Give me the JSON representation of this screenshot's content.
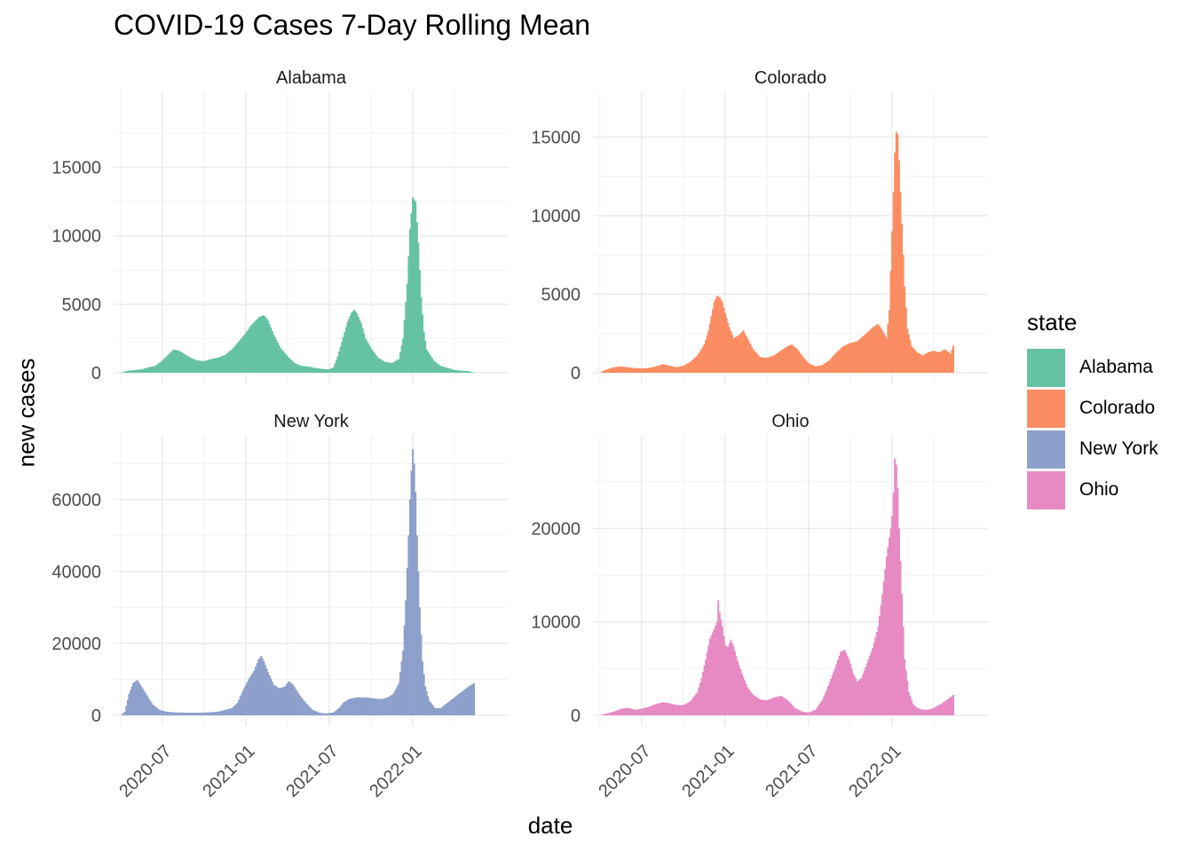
{
  "chart_data": {
    "type": "bar",
    "title": "COVID-19 Cases 7-Day Rolling Mean",
    "xlabel": "date",
    "ylabel": "new cases",
    "legend_title": "state",
    "legend_position": "right",
    "x_tick_labels": [
      "2020-07",
      "2021-01",
      "2021-07",
      "2022-01"
    ],
    "x_tick_months": [
      6,
      12,
      18,
      24
    ],
    "x_range_months": [
      2.5,
      30.9
    ],
    "panels": [
      {
        "name": "Alabama",
        "color": "#66C2A5",
        "ylim": [
          0,
          19500
        ],
        "yticks": [
          0,
          5000,
          10000,
          15000
        ],
        "series": [
          [
            3.0,
            0
          ],
          [
            3.5,
            150
          ],
          [
            4.0,
            200
          ],
          [
            4.5,
            250
          ],
          [
            5.0,
            400
          ],
          [
            5.5,
            500
          ],
          [
            6.0,
            900
          ],
          [
            6.4,
            1300
          ],
          [
            6.8,
            1700
          ],
          [
            7.2,
            1600
          ],
          [
            7.6,
            1350
          ],
          [
            8.0,
            1100
          ],
          [
            8.5,
            900
          ],
          [
            9.0,
            850
          ],
          [
            9.5,
            1000
          ],
          [
            10.0,
            1100
          ],
          [
            10.5,
            1300
          ],
          [
            11.0,
            1700
          ],
          [
            11.5,
            2300
          ],
          [
            12.0,
            2900
          ],
          [
            12.4,
            3500
          ],
          [
            12.8,
            3900
          ],
          [
            13.0,
            4100
          ],
          [
            13.3,
            4200
          ],
          [
            13.6,
            3800
          ],
          [
            14.0,
            2800
          ],
          [
            14.5,
            1800
          ],
          [
            15.0,
            1200
          ],
          [
            15.5,
            700
          ],
          [
            16.0,
            500
          ],
          [
            16.5,
            450
          ],
          [
            17.0,
            350
          ],
          [
            17.5,
            280
          ],
          [
            18.0,
            250
          ],
          [
            18.3,
            400
          ],
          [
            18.6,
            1200
          ],
          [
            19.0,
            2600
          ],
          [
            19.3,
            3700
          ],
          [
            19.6,
            4400
          ],
          [
            19.8,
            4600
          ],
          [
            20.0,
            4300
          ],
          [
            20.3,
            3600
          ],
          [
            20.6,
            2500
          ],
          [
            21.0,
            1800
          ],
          [
            21.5,
            1100
          ],
          [
            22.0,
            800
          ],
          [
            22.5,
            700
          ],
          [
            23.0,
            1000
          ],
          [
            23.3,
            2500
          ],
          [
            23.6,
            6500
          ],
          [
            23.8,
            10500
          ],
          [
            24.0,
            12800
          ],
          [
            24.2,
            12500
          ],
          [
            24.4,
            9500
          ],
          [
            24.6,
            5500
          ],
          [
            24.8,
            3000
          ],
          [
            25.0,
            1700
          ],
          [
            25.5,
            900
          ],
          [
            26.0,
            500
          ],
          [
            26.5,
            350
          ],
          [
            27.0,
            200
          ],
          [
            27.5,
            150
          ],
          [
            28.0,
            120
          ],
          [
            28.5,
            0
          ]
        ]
      },
      {
        "name": "Colorado",
        "color": "#FC8D62",
        "ylim": [
          0,
          17000
        ],
        "yticks": [
          0,
          5000,
          10000,
          15000
        ],
        "series": [
          [
            3.0,
            0
          ],
          [
            3.3,
            150
          ],
          [
            3.6,
            250
          ],
          [
            4.0,
            350
          ],
          [
            4.5,
            400
          ],
          [
            5.0,
            350
          ],
          [
            5.5,
            300
          ],
          [
            6.0,
            280
          ],
          [
            6.5,
            300
          ],
          [
            7.0,
            400
          ],
          [
            7.5,
            550
          ],
          [
            8.0,
            450
          ],
          [
            8.5,
            350
          ],
          [
            9.0,
            450
          ],
          [
            9.5,
            700
          ],
          [
            10.0,
            1100
          ],
          [
            10.5,
            1800
          ],
          [
            10.8,
            2700
          ],
          [
            11.0,
            3600
          ],
          [
            11.2,
            4500
          ],
          [
            11.4,
            4900
          ],
          [
            11.6,
            4800
          ],
          [
            11.8,
            4500
          ],
          [
            12.0,
            3800
          ],
          [
            12.3,
            2900
          ],
          [
            12.6,
            2200
          ],
          [
            13.0,
            2400
          ],
          [
            13.3,
            2700
          ],
          [
            13.6,
            2200
          ],
          [
            14.0,
            1500
          ],
          [
            14.5,
            1000
          ],
          [
            15.0,
            950
          ],
          [
            15.5,
            1100
          ],
          [
            16.0,
            1400
          ],
          [
            16.5,
            1700
          ],
          [
            16.8,
            1800
          ],
          [
            17.2,
            1500
          ],
          [
            17.6,
            1000
          ],
          [
            18.0,
            600
          ],
          [
            18.5,
            400
          ],
          [
            19.0,
            500
          ],
          [
            19.5,
            800
          ],
          [
            20.0,
            1300
          ],
          [
            20.5,
            1700
          ],
          [
            21.0,
            1900
          ],
          [
            21.5,
            2000
          ],
          [
            22.0,
            2400
          ],
          [
            22.5,
            2800
          ],
          [
            22.8,
            3000
          ],
          [
            23.0,
            3100
          ],
          [
            23.3,
            2700
          ],
          [
            23.6,
            2200
          ],
          [
            23.8,
            4000
          ],
          [
            24.0,
            9000
          ],
          [
            24.2,
            14000
          ],
          [
            24.35,
            16000
          ],
          [
            24.5,
            13500
          ],
          [
            24.7,
            9500
          ],
          [
            24.9,
            5500
          ],
          [
            25.1,
            2800
          ],
          [
            25.4,
            1700
          ],
          [
            25.8,
            1300
          ],
          [
            26.2,
            1100
          ],
          [
            26.6,
            1300
          ],
          [
            27.0,
            1400
          ],
          [
            27.4,
            1300
          ],
          [
            27.8,
            1500
          ],
          [
            28.2,
            1200
          ],
          [
            28.5,
            2000
          ]
        ]
      },
      {
        "name": "New York",
        "color": "#8DA0CB",
        "ylim": [
          0,
          74000
        ],
        "yticks": [
          0,
          20000,
          40000,
          60000
        ],
        "series": [
          [
            3.0,
            0
          ],
          [
            3.3,
            1000
          ],
          [
            3.6,
            6000
          ],
          [
            3.9,
            9000
          ],
          [
            4.2,
            9800
          ],
          [
            4.5,
            8000
          ],
          [
            4.9,
            5500
          ],
          [
            5.3,
            3000
          ],
          [
            5.8,
            1500
          ],
          [
            6.3,
            1000
          ],
          [
            7.0,
            800
          ],
          [
            8.0,
            700
          ],
          [
            9.0,
            750
          ],
          [
            10.0,
            1000
          ],
          [
            10.5,
            1500
          ],
          [
            11.0,
            2000
          ],
          [
            11.4,
            3500
          ],
          [
            11.8,
            7000
          ],
          [
            12.2,
            10000
          ],
          [
            12.6,
            12500
          ],
          [
            12.9,
            15500
          ],
          [
            13.1,
            16500
          ],
          [
            13.3,
            15000
          ],
          [
            13.6,
            12000
          ],
          [
            14.0,
            8500
          ],
          [
            14.4,
            7500
          ],
          [
            14.8,
            8000
          ],
          [
            15.1,
            9500
          ],
          [
            15.4,
            8500
          ],
          [
            15.8,
            6000
          ],
          [
            16.3,
            3500
          ],
          [
            16.8,
            1500
          ],
          [
            17.3,
            700
          ],
          [
            17.8,
            500
          ],
          [
            18.3,
            800
          ],
          [
            18.7,
            2000
          ],
          [
            19.0,
            3500
          ],
          [
            19.4,
            4500
          ],
          [
            20.0,
            5000
          ],
          [
            20.6,
            5000
          ],
          [
            21.2,
            4700
          ],
          [
            21.8,
            4500
          ],
          [
            22.2,
            5000
          ],
          [
            22.6,
            6000
          ],
          [
            23.0,
            9000
          ],
          [
            23.3,
            18000
          ],
          [
            23.5,
            32000
          ],
          [
            23.7,
            50000
          ],
          [
            23.85,
            65000
          ],
          [
            24.0,
            74000
          ],
          [
            24.15,
            68000
          ],
          [
            24.3,
            50000
          ],
          [
            24.5,
            30000
          ],
          [
            24.7,
            15000
          ],
          [
            24.9,
            8000
          ],
          [
            25.2,
            4000
          ],
          [
            25.6,
            2000
          ],
          [
            26.0,
            2000
          ],
          [
            26.5,
            3500
          ],
          [
            27.0,
            5000
          ],
          [
            27.5,
            6500
          ],
          [
            28.0,
            8000
          ],
          [
            28.5,
            9200
          ]
        ]
      },
      {
        "name": "Ohio",
        "color": "#E78AC3",
        "ylim": [
          0,
          28500
        ],
        "yticks": [
          0,
          10000,
          20000
        ],
        "series": [
          [
            3.0,
            0
          ],
          [
            3.5,
            200
          ],
          [
            4.0,
            400
          ],
          [
            4.5,
            700
          ],
          [
            5.0,
            800
          ],
          [
            5.5,
            600
          ],
          [
            6.0,
            700
          ],
          [
            6.5,
            900
          ],
          [
            7.0,
            1200
          ],
          [
            7.5,
            1400
          ],
          [
            8.0,
            1300
          ],
          [
            8.5,
            1100
          ],
          [
            9.0,
            1100
          ],
          [
            9.5,
            1500
          ],
          [
            10.0,
            2500
          ],
          [
            10.3,
            4000
          ],
          [
            10.6,
            6000
          ],
          [
            10.9,
            8200
          ],
          [
            11.2,
            9200
          ],
          [
            11.4,
            10000
          ],
          [
            11.5,
            12300
          ],
          [
            11.6,
            11000
          ],
          [
            11.8,
            9500
          ],
          [
            12.0,
            7500
          ],
          [
            12.2,
            7300
          ],
          [
            12.4,
            8100
          ],
          [
            12.6,
            7400
          ],
          [
            12.9,
            5800
          ],
          [
            13.2,
            4500
          ],
          [
            13.6,
            3000
          ],
          [
            14.0,
            2200
          ],
          [
            14.5,
            1700
          ],
          [
            15.0,
            1600
          ],
          [
            15.5,
            1900
          ],
          [
            16.0,
            2100
          ],
          [
            16.5,
            1600
          ],
          [
            17.0,
            800
          ],
          [
            17.5,
            400
          ],
          [
            18.0,
            300
          ],
          [
            18.5,
            600
          ],
          [
            19.0,
            1700
          ],
          [
            19.5,
            3500
          ],
          [
            20.0,
            5500
          ],
          [
            20.3,
            6800
          ],
          [
            20.6,
            7000
          ],
          [
            20.9,
            6000
          ],
          [
            21.2,
            4500
          ],
          [
            21.5,
            3600
          ],
          [
            21.8,
            4000
          ],
          [
            22.2,
            5600
          ],
          [
            22.6,
            7200
          ],
          [
            23.0,
            9500
          ],
          [
            23.3,
            13000
          ],
          [
            23.6,
            17000
          ],
          [
            23.9,
            20000
          ],
          [
            24.05,
            22000
          ],
          [
            24.2,
            27500
          ],
          [
            24.35,
            26500
          ],
          [
            24.5,
            20000
          ],
          [
            24.7,
            13000
          ],
          [
            24.9,
            6000
          ],
          [
            25.2,
            2500
          ],
          [
            25.5,
            1200
          ],
          [
            25.8,
            800
          ],
          [
            26.2,
            600
          ],
          [
            26.6,
            600
          ],
          [
            27.0,
            800
          ],
          [
            27.5,
            1200
          ],
          [
            28.0,
            1700
          ],
          [
            28.5,
            2300
          ]
        ]
      }
    ]
  }
}
